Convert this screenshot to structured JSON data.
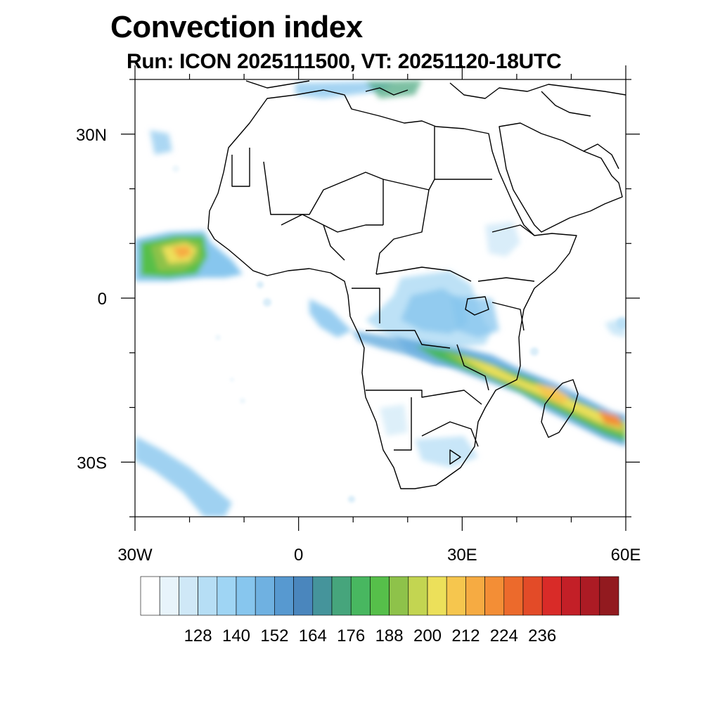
{
  "title": "Convection index",
  "subtitle": "Run: ICON 2025111500,  VT: 20251120-18UTC",
  "map": {
    "projection": "cylindrical-equidistant",
    "lon_range": [
      -30,
      60
    ],
    "lat_range": [
      -40,
      40
    ],
    "lat_ticks": [
      {
        "lat": 30,
        "label": "30N"
      },
      {
        "lat": 0,
        "label": "0"
      },
      {
        "lat": -30,
        "label": "30S"
      }
    ],
    "lon_ticks": [
      {
        "lon": -30,
        "label": "30W"
      },
      {
        "lon": 0,
        "label": "0"
      },
      {
        "lon": 30,
        "label": "30E"
      },
      {
        "lon": 60,
        "label": "60E"
      }
    ]
  },
  "colorbar": {
    "colors": [
      "#ffffff",
      "#e8f4fb",
      "#cfe8f7",
      "#b6def5",
      "#9fd5f4",
      "#87c6ee",
      "#6fb1e1",
      "#5799d0",
      "#4a86bd",
      "#45949b",
      "#46a57c",
      "#48b760",
      "#56bf4a",
      "#8ec24a",
      "#c3d551",
      "#ece05a",
      "#f6c64e",
      "#f6ab42",
      "#f38e36",
      "#ec6a2c",
      "#e34b28",
      "#d92b28",
      "#c31f27",
      "#ac1b24",
      "#921a1f"
    ],
    "tick_labels": [
      "128",
      "140",
      "152",
      "164",
      "176",
      "188",
      "200",
      "212",
      "224",
      "236"
    ]
  },
  "colors": {
    "coast": "#000000",
    "frame": "#000000"
  }
}
